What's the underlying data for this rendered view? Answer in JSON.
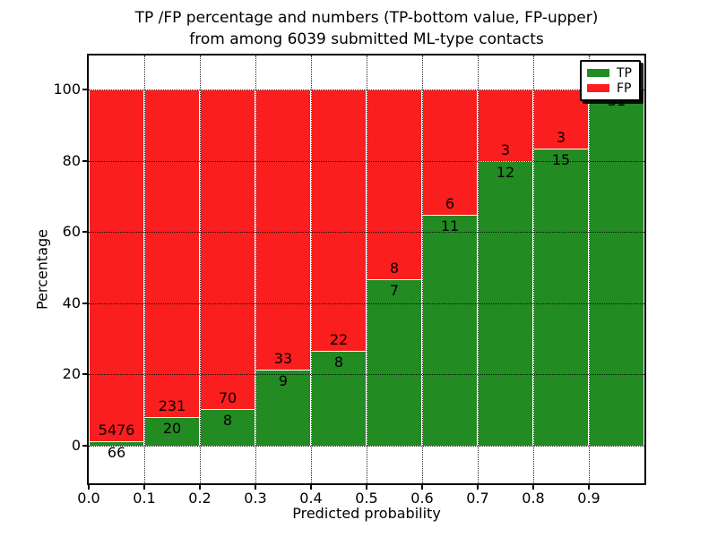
{
  "title": {
    "line1": "TP /FP percentage and numbers (TP-bottom value, FP-upper)",
    "line2": "from among 6039 submitted ML-type contacts"
  },
  "chart_data": {
    "type": "bar",
    "subtype": "stacked-100-percent",
    "title": "TP /FP percentage and numbers (TP-bottom value, FP-upper) from among 6039 submitted ML-type contacts",
    "xlabel": "Predicted probability",
    "ylabel": "Percentage",
    "total_contacts": 6039,
    "categories": [
      "0.0-0.1",
      "0.1-0.2",
      "0.2-0.3",
      "0.3-0.4",
      "0.4-0.5",
      "0.5-0.6",
      "0.6-0.7",
      "0.7-0.8",
      "0.8-0.9",
      "0.9-1.0"
    ],
    "series": [
      {
        "name": "TP",
        "color": "#228b22",
        "values": [
          66,
          20,
          8,
          9,
          8,
          7,
          11,
          12,
          15,
          31
        ]
      },
      {
        "name": "FP",
        "color": "#fa1e1e",
        "values": [
          5476,
          231,
          70,
          33,
          22,
          8,
          6,
          3,
          3,
          0
        ]
      }
    ],
    "tp_percentages": [
      1.19,
      7.97,
      10.26,
      21.43,
      26.67,
      46.67,
      64.71,
      80.0,
      83.33,
      100.0
    ],
    "annotations": {
      "fp_labels": [
        "5476",
        "231",
        "70",
        "33",
        "22",
        "8",
        "6",
        "3",
        "3",
        ""
      ],
      "tp_labels": [
        "66",
        "20",
        "8",
        "9",
        "8",
        "7",
        "11",
        "12",
        "15",
        "31"
      ]
    },
    "x_ticks": [
      "0.0",
      "0.1",
      "0.2",
      "0.3",
      "0.4",
      "0.5",
      "0.6",
      "0.7",
      "0.8",
      "0.9"
    ],
    "y_ticks": [
      0,
      20,
      40,
      60,
      80,
      100
    ],
    "xlim": [
      0.0,
      1.0
    ],
    "ylim": [
      -10.5,
      109.5
    ],
    "grid": "dotted",
    "bar_edge_color": "#ffffff",
    "legend": {
      "position": "upper-right",
      "shadow": true,
      "entries": [
        {
          "label": "TP",
          "color": "#228b22"
        },
        {
          "label": "FP",
          "color": "#fa1e1e"
        }
      ]
    }
  }
}
